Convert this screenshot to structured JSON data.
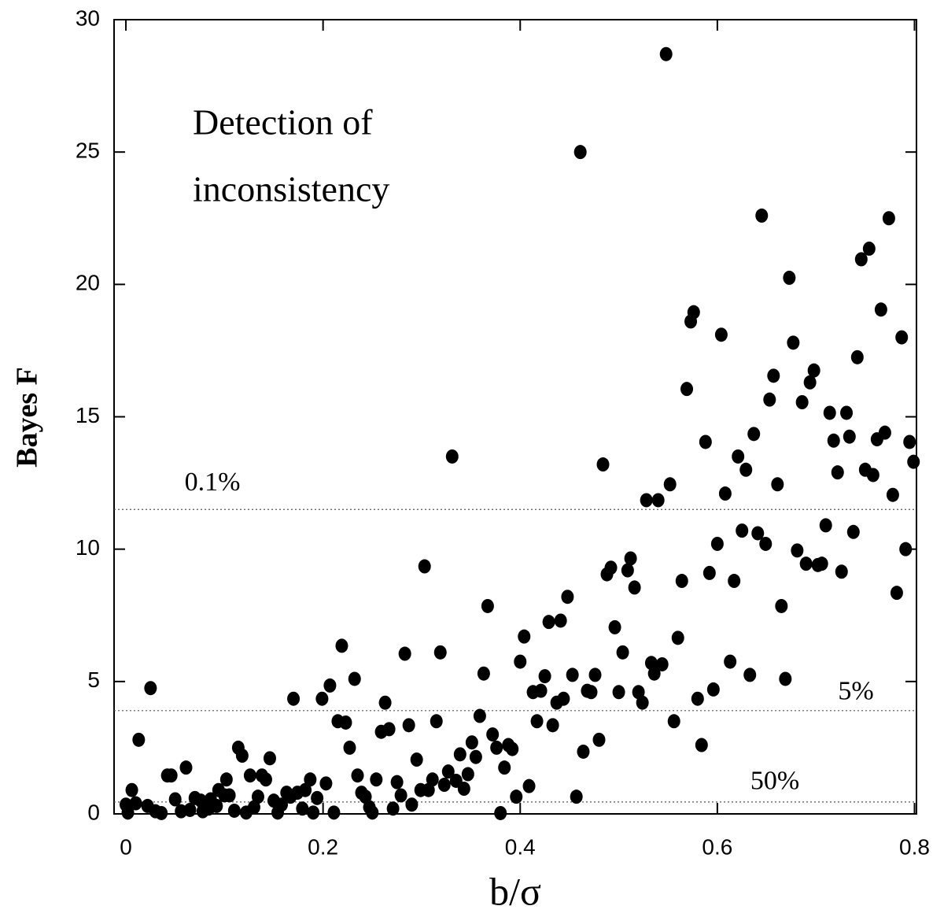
{
  "chart_data": {
    "type": "scatter",
    "xlabel": "b/σ",
    "ylabel": "Bayes F",
    "annotation": [
      "Detection of",
      "inconsistency"
    ],
    "color": "#000000",
    "xlim": [
      -0.012,
      0.802
    ],
    "ylim": [
      0,
      30
    ],
    "xticks": [
      0,
      0.2,
      0.4,
      0.6,
      0.8
    ],
    "yticks": [
      0,
      5,
      10,
      15,
      20,
      25,
      30
    ],
    "reference_lines": [
      {
        "value": 11.5,
        "label": "0.1%"
      },
      {
        "value": 3.9,
        "label": "5%"
      },
      {
        "value": 0.45,
        "label": "50%"
      }
    ],
    "x": [
      0.0,
      0.006,
      0.002,
      0.01,
      0.013,
      0.022,
      0.025,
      0.03,
      0.036,
      0.042,
      0.046,
      0.05,
      0.056,
      0.061,
      0.065,
      0.07,
      0.076,
      0.078,
      0.084,
      0.086,
      0.092,
      0.094,
      0.1,
      0.102,
      0.105,
      0.11,
      0.114,
      0.118,
      0.122,
      0.126,
      0.13,
      0.134,
      0.138,
      0.142,
      0.146,
      0.15,
      0.154,
      0.158,
      0.163,
      0.167,
      0.17,
      0.174,
      0.179,
      0.182,
      0.187,
      0.19,
      0.194,
      0.199,
      0.203,
      0.207,
      0.211,
      0.215,
      0.219,
      0.223,
      0.227,
      0.232,
      0.235,
      0.239,
      0.243,
      0.247,
      0.25,
      0.254,
      0.259,
      0.263,
      0.267,
      0.271,
      0.275,
      0.279,
      0.283,
      0.287,
      0.29,
      0.295,
      0.299,
      0.303,
      0.307,
      0.311,
      0.315,
      0.319,
      0.323,
      0.327,
      0.331,
      0.335,
      0.339,
      0.343,
      0.347,
      0.351,
      0.355,
      0.359,
      0.363,
      0.367,
      0.372,
      0.376,
      0.38,
      0.384,
      0.388,
      0.392,
      0.396,
      0.4,
      0.404,
      0.409,
      0.413,
      0.417,
      0.421,
      0.425,
      0.429,
      0.433,
      0.437,
      0.441,
      0.444,
      0.448,
      0.453,
      0.457,
      0.461,
      0.464,
      0.468,
      0.472,
      0.476,
      0.48,
      0.484,
      0.488,
      0.492,
      0.496,
      0.5,
      0.504,
      0.509,
      0.512,
      0.516,
      0.52,
      0.524,
      0.528,
      0.533,
      0.536,
      0.54,
      0.544,
      0.548,
      0.552,
      0.556,
      0.56,
      0.564,
      0.569,
      0.573,
      0.576,
      0.58,
      0.584,
      0.588,
      0.592,
      0.596,
      0.6,
      0.604,
      0.608,
      0.613,
      0.617,
      0.621,
      0.625,
      0.629,
      0.633,
      0.637,
      0.641,
      0.645,
      0.649,
      0.653,
      0.657,
      0.661,
      0.665,
      0.669,
      0.673,
      0.677,
      0.681,
      0.686,
      0.69,
      0.694,
      0.698,
      0.702,
      0.706,
      0.71,
      0.714,
      0.718,
      0.722,
      0.726,
      0.731,
      0.734,
      0.738,
      0.742,
      0.746,
      0.75,
      0.754,
      0.758,
      0.762,
      0.766,
      0.77,
      0.774,
      0.778,
      0.782,
      0.787,
      0.791,
      0.795,
      0.799
    ],
    "values": [
      0.35,
      0.9,
      0.05,
      0.4,
      2.8,
      0.3,
      4.75,
      0.1,
      0.03,
      1.45,
      1.45,
      0.55,
      0.1,
      1.75,
      0.15,
      0.6,
      0.5,
      0.1,
      0.2,
      0.55,
      0.3,
      0.9,
      0.7,
      1.3,
      0.7,
      0.12,
      2.5,
      2.2,
      0.05,
      1.45,
      0.25,
      0.65,
      1.45,
      1.3,
      2.1,
      0.5,
      0.05,
      0.35,
      0.8,
      0.65,
      4.35,
      0.8,
      0.2,
      0.9,
      1.3,
      0.05,
      0.6,
      4.35,
      1.15,
      4.85,
      0.05,
      3.5,
      6.35,
      3.45,
      2.5,
      5.1,
      1.45,
      0.8,
      0.65,
      0.25,
      0.05,
      1.3,
      3.1,
      4.2,
      3.2,
      0.2,
      1.2,
      0.7,
      6.05,
      3.35,
      0.35,
      2.05,
      0.9,
      9.35,
      0.9,
      1.3,
      3.5,
      6.1,
      1.1,
      1.6,
      13.5,
      1.25,
      2.25,
      0.95,
      1.5,
      2.7,
      2.15,
      3.7,
      5.3,
      7.85,
      3.0,
      2.5,
      0.03,
      1.75,
      2.6,
      2.45,
      0.65,
      5.75,
      6.7,
      1.05,
      4.6,
      3.5,
      4.65,
      5.2,
      7.25,
      3.35,
      4.2,
      7.3,
      4.35,
      8.2,
      5.25,
      0.65,
      25.0,
      2.35,
      4.65,
      4.6,
      5.25,
      2.8,
      13.2,
      9.05,
      9.3,
      7.05,
      4.6,
      6.1,
      9.2,
      9.65,
      8.55,
      4.6,
      4.2,
      11.85,
      5.7,
      5.3,
      11.85,
      5.65,
      28.7,
      12.45,
      3.5,
      6.65,
      8.8,
      16.05,
      18.6,
      18.95,
      4.35,
      2.6,
      14.05,
      9.1,
      4.7,
      10.2,
      18.1,
      12.1,
      5.75,
      8.8,
      13.5,
      10.7,
      13.0,
      5.25,
      14.35,
      10.6,
      22.6,
      10.2,
      15.65,
      16.55,
      12.45,
      7.85,
      5.1,
      20.25,
      17.8,
      9.95,
      15.55,
      9.45,
      16.3,
      16.75,
      9.4,
      9.45,
      10.9,
      15.15,
      14.1,
      12.9,
      9.15,
      15.15,
      14.25,
      10.65,
      17.25,
      20.95,
      13.0,
      21.35,
      12.8,
      14.15,
      19.05,
      14.4,
      22.5,
      12.05,
      8.35,
      18.0,
      10.0,
      14.05,
      13.3
    ]
  }
}
